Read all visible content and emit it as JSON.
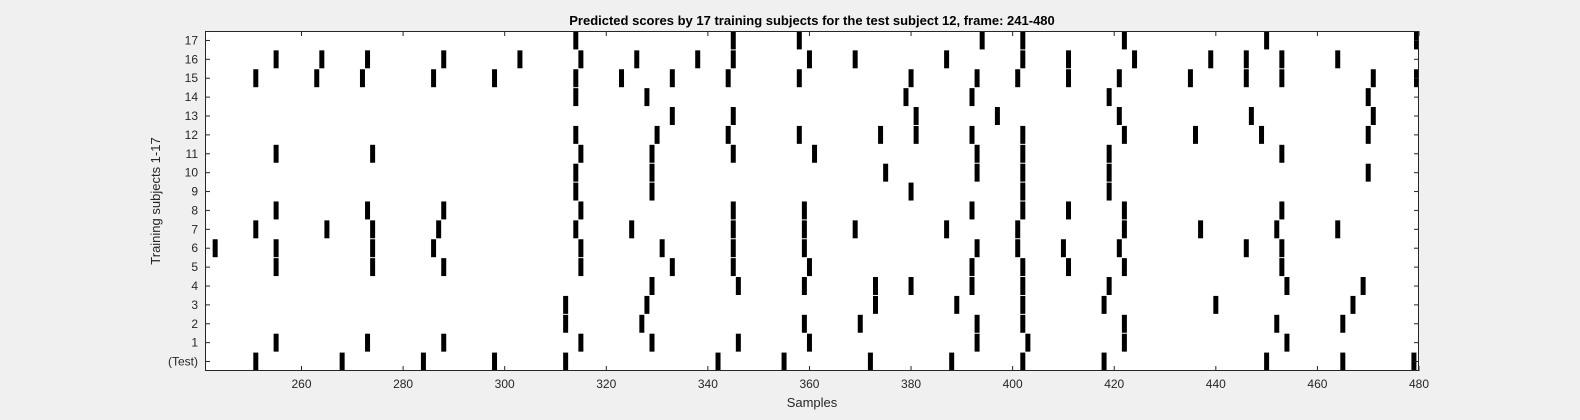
{
  "chart_data": {
    "type": "scatter",
    "title": "Predicted scores by 17 training subjects for the test subject 12, frame: 241-480",
    "xlabel": "Samples",
    "ylabel": "Training subjects 1-17",
    "xlim": [
      241,
      480
    ],
    "x_ticks": [
      260,
      280,
      300,
      320,
      340,
      360,
      380,
      400,
      420,
      440,
      460,
      480
    ],
    "y_tick_labels": [
      "(Test)",
      "1",
      "2",
      "3",
      "4",
      "5",
      "6",
      "7",
      "8",
      "9",
      "10",
      "11",
      "12",
      "13",
      "14",
      "15",
      "16",
      "17"
    ],
    "marker": "vertical bar",
    "marker_color": "#000000",
    "grid": false,
    "series": [
      {
        "name": "(Test)",
        "x": [
          251,
          268,
          284,
          298,
          312,
          342,
          355,
          372,
          388,
          402,
          418,
          450,
          465,
          479
        ]
      },
      {
        "name": "1",
        "x": [
          255,
          273,
          288,
          315,
          329,
          346,
          360,
          393,
          403,
          422,
          454
        ]
      },
      {
        "name": "2",
        "x": [
          312,
          327,
          359,
          370,
          393,
          402,
          422,
          452,
          465
        ]
      },
      {
        "name": "3",
        "x": [
          312,
          328,
          373,
          389,
          402,
          418,
          440,
          467
        ]
      },
      {
        "name": "4",
        "x": [
          329,
          346,
          359,
          373,
          380,
          392,
          402,
          419,
          454,
          469
        ]
      },
      {
        "name": "5",
        "x": [
          255,
          274,
          288,
          315,
          333,
          345,
          360,
          392,
          402,
          411,
          422,
          453
        ]
      },
      {
        "name": "6",
        "x": [
          243,
          255,
          274,
          286,
          315,
          331,
          345,
          359,
          393,
          401,
          410,
          421,
          446,
          453
        ]
      },
      {
        "name": "7",
        "x": [
          251,
          265,
          274,
          287,
          314,
          325,
          345,
          359,
          369,
          387,
          401,
          422,
          437,
          452,
          464
        ]
      },
      {
        "name": "8",
        "x": [
          255,
          273,
          288,
          315,
          345,
          359,
          392,
          402,
          411,
          422,
          453
        ]
      },
      {
        "name": "9",
        "x": [
          314,
          329,
          380,
          402,
          419
        ]
      },
      {
        "name": "10",
        "x": [
          314,
          329,
          375,
          393,
          402,
          419,
          470
        ]
      },
      {
        "name": "11",
        "x": [
          255,
          274,
          315,
          329,
          345,
          361,
          393,
          402,
          419,
          453
        ]
      },
      {
        "name": "12",
        "x": [
          314,
          330,
          344,
          358,
          374,
          381,
          392,
          402,
          422,
          436,
          449,
          470
        ]
      },
      {
        "name": "13",
        "x": [
          333,
          345,
          381,
          397,
          421,
          447,
          471
        ]
      },
      {
        "name": "14",
        "x": [
          314,
          328,
          379,
          392,
          419,
          470
        ]
      },
      {
        "name": "15",
        "x": [
          251,
          263,
          272,
          286,
          298,
          314,
          323,
          333,
          344,
          358,
          380,
          393,
          401,
          411,
          421,
          435,
          446,
          453,
          471,
          480
        ]
      },
      {
        "name": "16",
        "x": [
          255,
          264,
          273,
          288,
          303,
          315,
          326,
          338,
          345,
          360,
          369,
          387,
          402,
          411,
          424,
          439,
          446,
          453,
          464
        ]
      },
      {
        "name": "17",
        "x": [
          314,
          345,
          358,
          394,
          402,
          422,
          450,
          480
        ]
      }
    ]
  }
}
